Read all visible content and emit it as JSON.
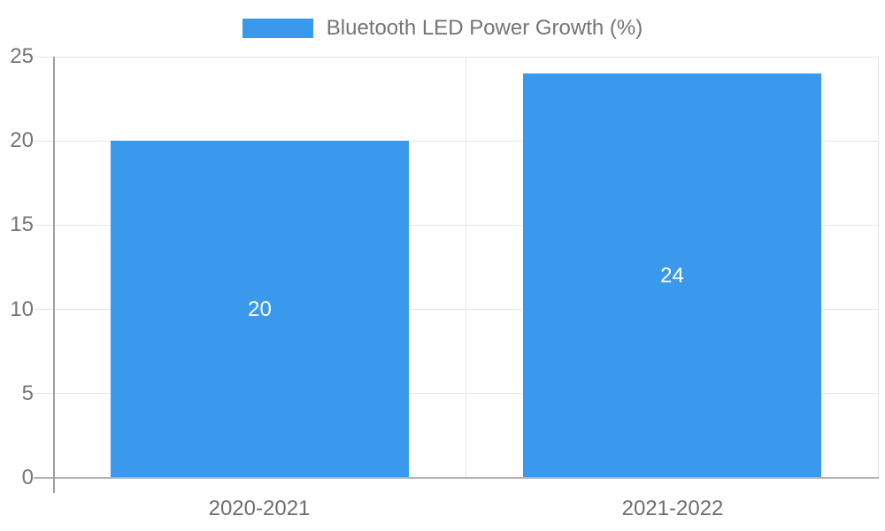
{
  "chart_data": {
    "type": "bar",
    "title": "",
    "categories": [
      "2020-2021",
      "2021-2022"
    ],
    "series": [
      {
        "name": "Bluetooth LED Power Growth (%)",
        "values": [
          20,
          24
        ],
        "color": "#3A99EC"
      }
    ],
    "bar_value_labels": [
      "20",
      "24"
    ],
    "xlabel": "",
    "ylabel": "",
    "ylim": [
      0,
      25
    ],
    "yticks": [
      0,
      5,
      10,
      15,
      20,
      25
    ],
    "grid": true,
    "legend_position": "top"
  },
  "legend": {
    "label": "Bluetooth LED Power Growth (%)"
  },
  "colors": {
    "bar": "#3A99EC",
    "grid": "#E6E6E6",
    "axis": "#9E9E9E",
    "baseline": "#B3B3B3",
    "tick_text": "#757575",
    "x_tick_text": "#6E6E6E",
    "bar_label_text": "#FFFFFF",
    "background": "#FFFFFF"
  }
}
